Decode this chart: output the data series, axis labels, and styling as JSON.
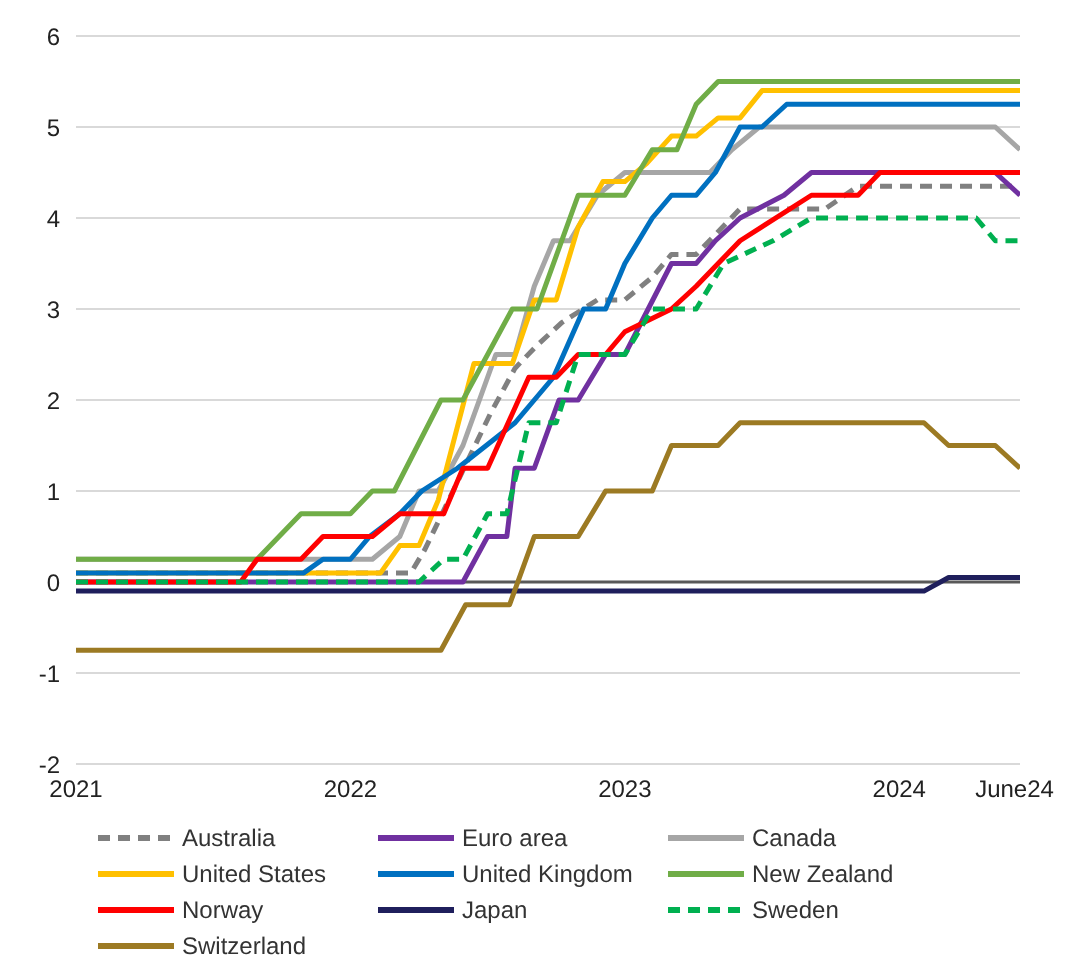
{
  "chart_data": {
    "type": "line",
    "xlim": [
      2021,
      2024.44
    ],
    "xticks": [
      2021,
      2022,
      2023,
      2024,
      {
        "value": 2024.42,
        "label": "June24"
      }
    ],
    "ylim": [
      -2,
      6
    ],
    "yticks": [
      -2,
      -1,
      0,
      1,
      2,
      3,
      4,
      5,
      6
    ],
    "grid": "y",
    "legend": "bottom",
    "marker": "none",
    "tick_labels": true,
    "ref_lines": [
      {
        "axis": "y",
        "value": 0,
        "color": "#595959"
      }
    ],
    "series": [
      {
        "name": "Australia",
        "color": "#808080",
        "line_style": "dashed",
        "x": [
          2021,
          2022.22,
          2022.27,
          2022.35,
          2022.43,
          2022.51,
          2022.6,
          2022.68,
          2022.77,
          2022.9,
          2023.0,
          2023.1,
          2023.17,
          2023.26,
          2023.34,
          2023.42,
          2023.73,
          2023.85,
          2024.44
        ],
        "values": [
          0.1,
          0.1,
          0.35,
          0.85,
          1.35,
          1.85,
          2.35,
          2.6,
          2.85,
          3.1,
          3.1,
          3.35,
          3.6,
          3.6,
          3.85,
          4.1,
          4.1,
          4.35,
          4.35
        ]
      },
      {
        "name": "Euro area",
        "color": "#7030a0",
        "x": [
          2021,
          2022.41,
          2022.5,
          2022.57,
          2022.6,
          2022.67,
          2022.76,
          2022.83,
          2022.93,
          2023.0,
          2023.17,
          2023.26,
          2023.33,
          2023.42,
          2023.58,
          2023.68,
          2024.35,
          2024.44
        ],
        "values": [
          0,
          0,
          0.5,
          0.5,
          1.25,
          1.25,
          2.0,
          2.0,
          2.5,
          2.5,
          3.5,
          3.5,
          3.75,
          4.0,
          4.25,
          4.5,
          4.5,
          4.25
        ]
      },
      {
        "name": "Canada",
        "color": "#a6a6a6",
        "x": [
          2021,
          2022.08,
          2022.18,
          2022.25,
          2022.32,
          2022.41,
          2022.53,
          2022.6,
          2022.67,
          2022.74,
          2022.8,
          2022.9,
          2023.0,
          2023.31,
          2023.39,
          2023.49,
          2024.35,
          2024.44
        ],
        "values": [
          0.25,
          0.25,
          0.5,
          1.0,
          1.0,
          1.5,
          2.5,
          2.5,
          3.25,
          3.75,
          3.75,
          4.25,
          4.5,
          4.5,
          4.75,
          5.0,
          5.0,
          4.75
        ]
      },
      {
        "name": "United States",
        "color": "#ffc000",
        "x": [
          2021,
          2022.11,
          2022.18,
          2022.25,
          2022.32,
          2022.45,
          2022.59,
          2022.67,
          2022.75,
          2022.83,
          2022.92,
          2023.0,
          2023.08,
          2023.17,
          2023.26,
          2023.34,
          2023.42,
          2023.5,
          2024.44
        ],
        "values": [
          0.1,
          0.1,
          0.4,
          0.4,
          0.9,
          2.4,
          2.4,
          3.1,
          3.1,
          3.9,
          4.4,
          4.4,
          4.6,
          4.9,
          4.9,
          5.1,
          5.1,
          5.4,
          5.4
        ]
      },
      {
        "name": "United Kingdom",
        "color": "#0070c0",
        "x": [
          2021,
          2021.83,
          2021.9,
          2022.0,
          2022.07,
          2022.18,
          2022.26,
          2022.39,
          2022.6,
          2022.74,
          2022.85,
          2022.93,
          2023.0,
          2023.1,
          2023.17,
          2023.26,
          2023.33,
          2023.42,
          2023.5,
          2023.59,
          2024.44
        ],
        "values": [
          0.1,
          0.1,
          0.25,
          0.25,
          0.5,
          0.75,
          1.0,
          1.25,
          1.75,
          2.25,
          3.0,
          3.0,
          3.5,
          4.0,
          4.25,
          4.25,
          4.5,
          5.0,
          5.0,
          5.25,
          5.25
        ]
      },
      {
        "name": "New Zealand",
        "color": "#70ad47",
        "x": [
          2021,
          2021.66,
          2021.82,
          2022.0,
          2022.08,
          2022.16,
          2022.33,
          2022.41,
          2022.59,
          2022.68,
          2022.83,
          2023.0,
          2023.1,
          2023.19,
          2023.26,
          2023.34,
          2024.44
        ],
        "values": [
          0.25,
          0.25,
          0.75,
          0.75,
          1.0,
          1.0,
          2.0,
          2.0,
          3.0,
          3.0,
          4.25,
          4.25,
          4.75,
          4.75,
          5.25,
          5.5,
          5.5
        ]
      },
      {
        "name": "Norway",
        "color": "#ff0000",
        "x": [
          2021,
          2021.6,
          2021.66,
          2021.82,
          2021.9,
          2022.08,
          2022.18,
          2022.34,
          2022.41,
          2022.5,
          2022.65,
          2022.75,
          2022.83,
          2022.93,
          2023.0,
          2023.17,
          2023.26,
          2023.34,
          2023.42,
          2023.68,
          2023.85,
          2023.93,
          2024.44
        ],
        "values": [
          0,
          0,
          0.25,
          0.25,
          0.5,
          0.5,
          0.75,
          0.75,
          1.25,
          1.25,
          2.25,
          2.25,
          2.5,
          2.5,
          2.75,
          3.0,
          3.25,
          3.5,
          3.75,
          4.25,
          4.25,
          4.5,
          4.5
        ]
      },
      {
        "name": "Japan",
        "color": "#1f1f5c",
        "x": [
          2021,
          2024.09,
          2024.18,
          2024.44
        ],
        "values": [
          -0.1,
          -0.1,
          0.05,
          0.05
        ]
      },
      {
        "name": "Sweden",
        "color": "#00b050",
        "line_style": "dashed",
        "x": [
          2021,
          2022.25,
          2022.34,
          2022.41,
          2022.5,
          2022.57,
          2022.65,
          2022.75,
          2022.83,
          2023.0,
          2023.1,
          2023.26,
          2023.36,
          2023.54,
          2023.68,
          2024.28,
          2024.35,
          2024.44
        ],
        "values": [
          0,
          0,
          0.25,
          0.25,
          0.75,
          0.75,
          1.75,
          1.75,
          2.5,
          2.5,
          3.0,
          3.0,
          3.5,
          3.75,
          4.0,
          4.0,
          3.75,
          3.75
        ]
      },
      {
        "name": "Switzerland",
        "color": "#9c7a23",
        "x": [
          2021,
          2022.33,
          2022.42,
          2022.58,
          2022.67,
          2022.83,
          2022.93,
          2023.1,
          2023.17,
          2023.34,
          2023.42,
          2024.09,
          2024.18,
          2024.35,
          2024.44
        ],
        "values": [
          -0.75,
          -0.75,
          -0.25,
          -0.25,
          0.5,
          0.5,
          1.0,
          1.0,
          1.5,
          1.5,
          1.75,
          1.75,
          1.5,
          1.5,
          1.25
        ]
      }
    ]
  }
}
